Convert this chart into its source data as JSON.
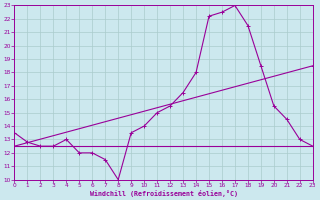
{
  "bg_color": "#cce8ee",
  "line_color": "#990099",
  "grid_color": "#aacccc",
  "xlabel": "Windchill (Refroidissement éolien,°C)",
  "xlabel_color": "#990099",
  "ylim": [
    10,
    23
  ],
  "xlim": [
    0,
    23
  ],
  "yticks": [
    10,
    11,
    12,
    13,
    14,
    15,
    16,
    17,
    18,
    19,
    20,
    21,
    22,
    23
  ],
  "xticks": [
    0,
    1,
    2,
    3,
    4,
    5,
    6,
    7,
    8,
    9,
    10,
    11,
    12,
    13,
    14,
    15,
    16,
    17,
    18,
    19,
    20,
    21,
    22,
    23
  ],
  "line1_x": [
    0,
    1,
    2,
    3,
    4,
    5,
    6,
    7,
    8,
    9,
    10,
    11,
    12,
    13,
    14,
    15,
    16,
    17,
    18,
    19,
    20,
    21,
    22,
    23
  ],
  "line1_y": [
    13.5,
    12.8,
    12.5,
    12.5,
    13.0,
    12.0,
    12.0,
    11.5,
    10.0,
    13.5,
    14.0,
    15.0,
    15.5,
    16.5,
    18.0,
    22.2,
    22.5,
    23.0,
    21.5,
    18.5,
    15.5,
    14.5,
    13.0,
    12.5
  ],
  "line2_x": [
    0,
    23
  ],
  "line2_y": [
    12.5,
    18.5
  ],
  "line3_x": [
    0,
    23
  ],
  "line3_y": [
    12.5,
    12.5
  ],
  "marker": "+"
}
